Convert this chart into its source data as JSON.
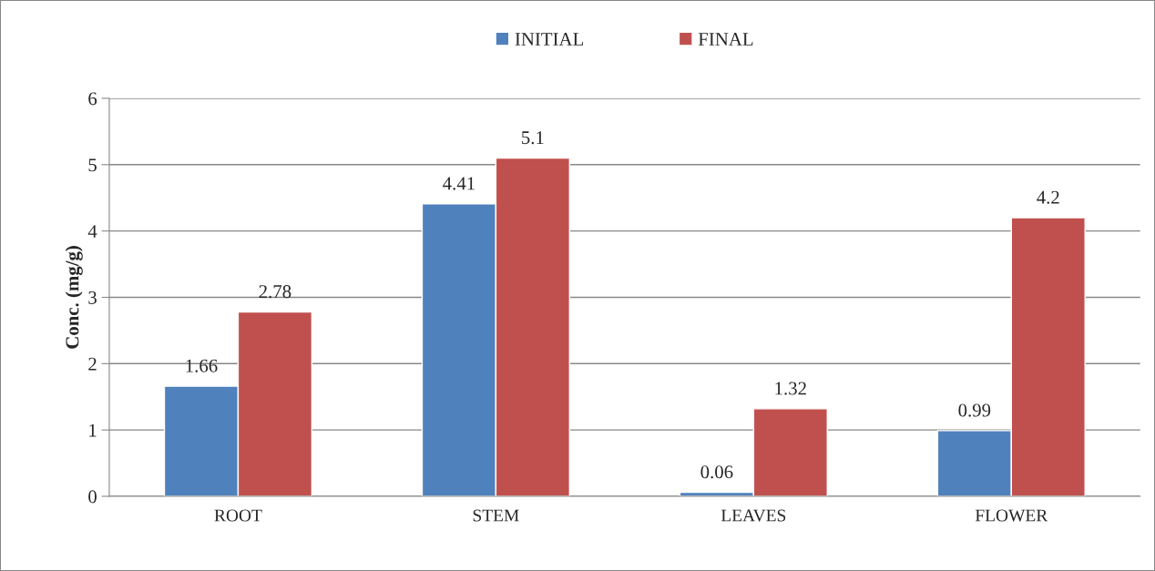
{
  "chart_data": {
    "type": "bar",
    "ylabel": "Conc. (mg/g)",
    "categories": [
      "ROOT",
      "STEM",
      "LEAVES",
      "FLOWER"
    ],
    "series": [
      {
        "name": "INITIAL",
        "color": "#4f81bd",
        "values": [
          1.66,
          4.41,
          0.06,
          0.99
        ]
      },
      {
        "name": "FINAL",
        "color": "#c0504d",
        "values": [
          2.78,
          5.1,
          1.32,
          4.2
        ]
      }
    ],
    "ylim": [
      0,
      6
    ],
    "yticks": [
      0,
      1,
      2,
      3,
      4,
      5,
      6
    ],
    "grid": "y",
    "legend": "top",
    "data_labels": true
  }
}
